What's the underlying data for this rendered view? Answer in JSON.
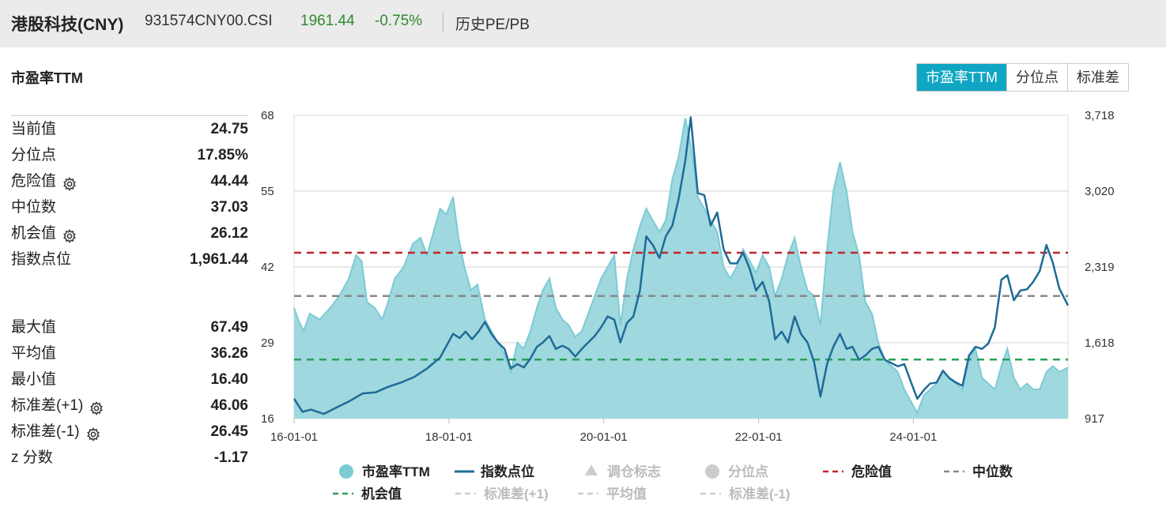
{
  "header": {
    "title": "港股科技(CNY)",
    "code": "931574CNY00.CSI",
    "price": "1961.44",
    "change": "-0.75%",
    "link": "历史PE/PB"
  },
  "section_title": "市盈率TTM",
  "tabs": [
    {
      "label": "市盈率TTM",
      "active": true
    },
    {
      "label": "分位点",
      "active": false
    },
    {
      "label": "标准差",
      "active": false
    }
  ],
  "stats_top": [
    {
      "label": "当前值",
      "value": "24.75",
      "gear": false
    },
    {
      "label": "分位点",
      "value": "17.85%",
      "gear": false
    },
    {
      "label": "危险值",
      "value": "44.44",
      "gear": true
    },
    {
      "label": "中位数",
      "value": "37.03",
      "gear": false
    },
    {
      "label": "机会值",
      "value": "26.12",
      "gear": true
    },
    {
      "label": "指数点位",
      "value": "1,961.44",
      "gear": false
    }
  ],
  "stats_bottom": [
    {
      "label": "最大值",
      "value": "67.49",
      "gear": false
    },
    {
      "label": "平均值",
      "value": "36.26",
      "gear": false
    },
    {
      "label": "最小值",
      "value": "16.40",
      "gear": false
    },
    {
      "label": "标准差(+1)",
      "value": "46.06",
      "gear": true
    },
    {
      "label": "标准差(-1)",
      "value": "26.45",
      "gear": true
    },
    {
      "label": "z 分数",
      "value": "-1.17",
      "gear": false
    }
  ],
  "colors": {
    "accent": "#10a6c3",
    "pe_fill": "#9fd8df",
    "pe_line": "#7ccbd5",
    "index_line": "#1f6a97",
    "danger": "#c0272d",
    "median": "#888888",
    "opportunity": "#2aa05a",
    "up_down": "#2e8b2e"
  },
  "chart_data": {
    "type": "area",
    "x_ticks": [
      "16-01-01",
      "18-01-01",
      "20-01-01",
      "22-01-01",
      "24-01-01"
    ],
    "xlim": [
      "2016-01-01",
      "2025-12-31"
    ],
    "y_left_ticks": [
      "16",
      "29",
      "42",
      "55",
      "68"
    ],
    "y_left_lim": [
      16,
      68
    ],
    "y_right_ticks": [
      "917",
      "1,618",
      "2,319",
      "3,020",
      "3,718"
    ],
    "y_right_lim": [
      917,
      3718
    ],
    "grid": true,
    "reference_lines": [
      {
        "name": "危险值",
        "value": 44.44,
        "color": "#c0272d"
      },
      {
        "name": "中位数",
        "value": 37.03,
        "color": "#888888"
      },
      {
        "name": "机会值",
        "value": 26.12,
        "color": "#2aa05a"
      }
    ],
    "series": [
      {
        "name": "市盈率TTM",
        "axis": "left",
        "style": "area",
        "points": [
          [
            "2016-01-01",
            35
          ],
          [
            "2016-01-20",
            33
          ],
          [
            "2016-02-15",
            31
          ],
          [
            "2016-03-15",
            34
          ],
          [
            "2016-05-01",
            33
          ],
          [
            "2016-06-20",
            35
          ],
          [
            "2016-08-01",
            37
          ],
          [
            "2016-09-15",
            40
          ],
          [
            "2016-10-20",
            44
          ],
          [
            "2016-11-15",
            43
          ],
          [
            "2016-12-10",
            36
          ],
          [
            "2017-01-15",
            35
          ],
          [
            "2017-02-20",
            33
          ],
          [
            "2017-03-20",
            36
          ],
          [
            "2017-04-20",
            40
          ],
          [
            "2017-06-01",
            42
          ],
          [
            "2017-07-15",
            46
          ],
          [
            "2017-08-20",
            47
          ],
          [
            "2017-09-20",
            44
          ],
          [
            "2017-10-20",
            48
          ],
          [
            "2017-11-20",
            52
          ],
          [
            "2017-12-20",
            51
          ],
          [
            "2018-01-20",
            54
          ],
          [
            "2018-02-15",
            47
          ],
          [
            "2018-03-15",
            42
          ],
          [
            "2018-04-15",
            38
          ],
          [
            "2018-05-15",
            39
          ],
          [
            "2018-06-20",
            33
          ],
          [
            "2018-07-20",
            31
          ],
          [
            "2018-08-20",
            29
          ],
          [
            "2018-09-20",
            27
          ],
          [
            "2018-10-20",
            24
          ],
          [
            "2018-11-20",
            29
          ],
          [
            "2018-12-20",
            28
          ],
          [
            "2019-01-20",
            31
          ],
          [
            "2019-02-20",
            35
          ],
          [
            "2019-03-20",
            38
          ],
          [
            "2019-04-20",
            40
          ],
          [
            "2019-05-20",
            35
          ],
          [
            "2019-06-20",
            33
          ],
          [
            "2019-07-20",
            32
          ],
          [
            "2019-08-20",
            30
          ],
          [
            "2019-09-20",
            31
          ],
          [
            "2019-10-20",
            34
          ],
          [
            "2019-11-20",
            37
          ],
          [
            "2019-12-20",
            40
          ],
          [
            "2020-01-20",
            42
          ],
          [
            "2020-02-20",
            44
          ],
          [
            "2020-03-20",
            32
          ],
          [
            "2020-04-20",
            40
          ],
          [
            "2020-05-20",
            45
          ],
          [
            "2020-06-20",
            49
          ],
          [
            "2020-07-20",
            52
          ],
          [
            "2020-08-20",
            50
          ],
          [
            "2020-09-20",
            48
          ],
          [
            "2020-10-20",
            50
          ],
          [
            "2020-11-20",
            57
          ],
          [
            "2020-12-20",
            61
          ],
          [
            "2021-01-20",
            67.5
          ],
          [
            "2021-02-15",
            63
          ],
          [
            "2021-03-20",
            54
          ],
          [
            "2021-04-20",
            52
          ],
          [
            "2021-05-20",
            50
          ],
          [
            "2021-06-20",
            48
          ],
          [
            "2021-07-20",
            42
          ],
          [
            "2021-08-20",
            40
          ],
          [
            "2021-09-20",
            42
          ],
          [
            "2021-10-20",
            45
          ],
          [
            "2021-11-20",
            43
          ],
          [
            "2021-12-20",
            41
          ],
          [
            "2022-01-20",
            44
          ],
          [
            "2022-02-20",
            42
          ],
          [
            "2022-03-20",
            37
          ],
          [
            "2022-04-20",
            40
          ],
          [
            "2022-05-20",
            44
          ],
          [
            "2022-06-20",
            47
          ],
          [
            "2022-07-20",
            42
          ],
          [
            "2022-08-20",
            38
          ],
          [
            "2022-09-20",
            37
          ],
          [
            "2022-10-20",
            32
          ],
          [
            "2022-11-20",
            45
          ],
          [
            "2022-12-20",
            55
          ],
          [
            "2023-01-20",
            60
          ],
          [
            "2023-02-20",
            55
          ],
          [
            "2023-03-20",
            48
          ],
          [
            "2023-04-20",
            44
          ],
          [
            "2023-05-20",
            36
          ],
          [
            "2023-06-20",
            34
          ],
          [
            "2023-07-20",
            29
          ],
          [
            "2023-08-20",
            26
          ],
          [
            "2023-09-20",
            25
          ],
          [
            "2023-10-20",
            24
          ],
          [
            "2023-11-20",
            21
          ],
          [
            "2023-12-20",
            19
          ],
          [
            "2024-01-20",
            17
          ],
          [
            "2024-02-20",
            20
          ],
          [
            "2024-03-20",
            21
          ],
          [
            "2024-04-20",
            22
          ],
          [
            "2024-05-20",
            24
          ],
          [
            "2024-06-20",
            23
          ],
          [
            "2024-07-20",
            22
          ],
          [
            "2024-08-20",
            21
          ],
          [
            "2024-09-20",
            26
          ],
          [
            "2024-10-20",
            28
          ],
          [
            "2024-11-20",
            23
          ],
          [
            "2024-12-20",
            22
          ],
          [
            "2025-01-20",
            21
          ],
          [
            "2025-02-20",
            25
          ],
          [
            "2025-03-20",
            28
          ],
          [
            "2025-04-20",
            23
          ],
          [
            "2025-05-20",
            21
          ],
          [
            "2025-06-20",
            22
          ],
          [
            "2025-07-20",
            21
          ],
          [
            "2025-08-20",
            21
          ],
          [
            "2025-09-20",
            24
          ],
          [
            "2025-10-20",
            25
          ],
          [
            "2025-11-20",
            24
          ],
          [
            "2025-12-31",
            24.75
          ]
        ]
      },
      {
        "name": "指数点位",
        "axis": "right",
        "style": "line",
        "points": [
          [
            "2016-01-01",
            1100
          ],
          [
            "2016-02-10",
            980
          ],
          [
            "2016-03-20",
            1000
          ],
          [
            "2016-05-20",
            960
          ],
          [
            "2016-07-20",
            1020
          ],
          [
            "2016-09-20",
            1080
          ],
          [
            "2016-11-20",
            1150
          ],
          [
            "2017-01-20",
            1160
          ],
          [
            "2017-03-20",
            1210
          ],
          [
            "2017-05-20",
            1250
          ],
          [
            "2017-07-20",
            1300
          ],
          [
            "2017-09-20",
            1380
          ],
          [
            "2017-11-20",
            1480
          ],
          [
            "2018-01-20",
            1700
          ],
          [
            "2018-02-20",
            1660
          ],
          [
            "2018-03-20",
            1720
          ],
          [
            "2018-04-20",
            1650
          ],
          [
            "2018-05-20",
            1720
          ],
          [
            "2018-06-20",
            1810
          ],
          [
            "2018-07-20",
            1700
          ],
          [
            "2018-08-20",
            1620
          ],
          [
            "2018-09-20",
            1560
          ],
          [
            "2018-10-20",
            1380
          ],
          [
            "2018-11-20",
            1420
          ],
          [
            "2018-12-20",
            1390
          ],
          [
            "2019-01-20",
            1470
          ],
          [
            "2019-02-20",
            1580
          ],
          [
            "2019-03-20",
            1620
          ],
          [
            "2019-04-20",
            1680
          ],
          [
            "2019-05-20",
            1560
          ],
          [
            "2019-06-20",
            1590
          ],
          [
            "2019-07-20",
            1560
          ],
          [
            "2019-08-20",
            1490
          ],
          [
            "2019-09-20",
            1560
          ],
          [
            "2019-10-20",
            1620
          ],
          [
            "2019-11-20",
            1680
          ],
          [
            "2019-12-20",
            1760
          ],
          [
            "2020-01-20",
            1860
          ],
          [
            "2020-02-20",
            1830
          ],
          [
            "2020-03-20",
            1620
          ],
          [
            "2020-04-20",
            1800
          ],
          [
            "2020-05-20",
            1860
          ],
          [
            "2020-06-20",
            2100
          ],
          [
            "2020-07-20",
            2600
          ],
          [
            "2020-08-20",
            2520
          ],
          [
            "2020-09-20",
            2400
          ],
          [
            "2020-10-20",
            2600
          ],
          [
            "2020-11-20",
            2700
          ],
          [
            "2020-12-20",
            2950
          ],
          [
            "2021-01-20",
            3300
          ],
          [
            "2021-02-15",
            3700
          ],
          [
            "2021-03-20",
            3000
          ],
          [
            "2021-04-20",
            2980
          ],
          [
            "2021-05-20",
            2700
          ],
          [
            "2021-06-20",
            2820
          ],
          [
            "2021-07-20",
            2480
          ],
          [
            "2021-08-20",
            2350
          ],
          [
            "2021-09-20",
            2350
          ],
          [
            "2021-10-20",
            2450
          ],
          [
            "2021-11-20",
            2300
          ],
          [
            "2021-12-20",
            2100
          ],
          [
            "2022-01-20",
            2180
          ],
          [
            "2022-02-20",
            2000
          ],
          [
            "2022-03-20",
            1650
          ],
          [
            "2022-04-20",
            1720
          ],
          [
            "2022-05-20",
            1620
          ],
          [
            "2022-06-20",
            1860
          ],
          [
            "2022-07-20",
            1700
          ],
          [
            "2022-08-20",
            1620
          ],
          [
            "2022-09-20",
            1440
          ],
          [
            "2022-10-20",
            1120
          ],
          [
            "2022-11-20",
            1420
          ],
          [
            "2022-12-20",
            1580
          ],
          [
            "2023-01-20",
            1700
          ],
          [
            "2023-02-20",
            1560
          ],
          [
            "2023-03-20",
            1580
          ],
          [
            "2023-04-20",
            1460
          ],
          [
            "2023-05-20",
            1500
          ],
          [
            "2023-06-20",
            1560
          ],
          [
            "2023-07-20",
            1580
          ],
          [
            "2023-08-20",
            1460
          ],
          [
            "2023-09-20",
            1430
          ],
          [
            "2023-10-20",
            1400
          ],
          [
            "2023-11-20",
            1420
          ],
          [
            "2023-12-20",
            1260
          ],
          [
            "2024-01-20",
            1100
          ],
          [
            "2024-02-20",
            1180
          ],
          [
            "2024-03-20",
            1240
          ],
          [
            "2024-04-20",
            1250
          ],
          [
            "2024-05-20",
            1360
          ],
          [
            "2024-06-20",
            1290
          ],
          [
            "2024-07-20",
            1250
          ],
          [
            "2024-08-20",
            1220
          ],
          [
            "2024-09-20",
            1500
          ],
          [
            "2024-10-20",
            1580
          ],
          [
            "2024-11-20",
            1560
          ],
          [
            "2024-12-20",
            1610
          ],
          [
            "2025-01-20",
            1760
          ],
          [
            "2025-02-20",
            2200
          ],
          [
            "2025-03-20",
            2240
          ],
          [
            "2025-04-20",
            2010
          ],
          [
            "2025-05-20",
            2100
          ],
          [
            "2025-06-20",
            2110
          ],
          [
            "2025-07-20",
            2180
          ],
          [
            "2025-08-20",
            2280
          ],
          [
            "2025-09-20",
            2520
          ],
          [
            "2025-10-20",
            2360
          ],
          [
            "2025-11-20",
            2120
          ],
          [
            "2025-12-31",
            1961.44
          ]
        ]
      }
    ],
    "legend": [
      {
        "label": "市盈率TTM",
        "marker": "circle",
        "color": "#7ccbd5",
        "active": true
      },
      {
        "label": "指数点位",
        "marker": "line",
        "color": "#1f6a97",
        "active": true
      },
      {
        "label": "调仓标志",
        "marker": "triangle",
        "color": "#cccccc",
        "active": false
      },
      {
        "label": "分位点",
        "marker": "circle",
        "color": "#cccccc",
        "active": false
      },
      {
        "label": "危险值",
        "marker": "dash",
        "color": "#c0272d",
        "active": true
      },
      {
        "label": "中位数",
        "marker": "dash",
        "color": "#888888",
        "active": true
      },
      {
        "label": "机会值",
        "marker": "dash",
        "color": "#2aa05a",
        "active": true
      },
      {
        "label": "标准差(+1)",
        "marker": "dash",
        "color": "#cccccc",
        "active": false
      },
      {
        "label": "平均值",
        "marker": "dash",
        "color": "#cccccc",
        "active": false
      },
      {
        "label": "标准差(-1)",
        "marker": "dash",
        "color": "#cccccc",
        "active": false
      }
    ],
    "legend_position": "bottom"
  }
}
